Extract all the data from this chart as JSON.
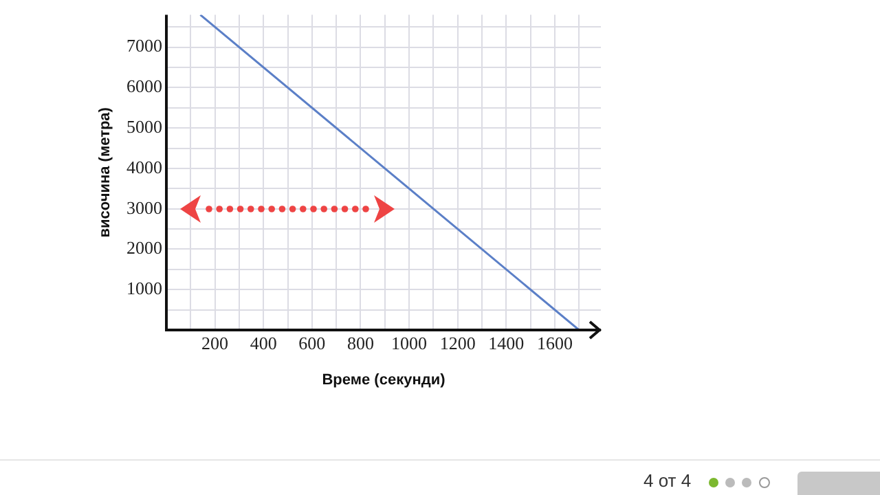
{
  "chart_data": {
    "type": "line",
    "xlabel": "Време (секунди)",
    "ylabel": "височина (метра)",
    "x": [
      140,
      1700
    ],
    "series": [
      {
        "color": "#5b7fc7",
        "values": [
          7800,
          0
        ]
      }
    ],
    "xlim": [
      0,
      1790
    ],
    "ylim": [
      0,
      7800
    ],
    "xticks": [
      {
        "value": 100,
        "label": null
      },
      200,
      {
        "value": 300,
        "label": null
      },
      400,
      {
        "value": 500,
        "label": null
      },
      600,
      {
        "value": 700,
        "label": null
      },
      800,
      {
        "value": 900,
        "label": null
      },
      1000,
      {
        "value": 1100,
        "label": null
      },
      1200,
      {
        "value": 1300,
        "label": null
      },
      1400,
      {
        "value": 1500,
        "label": null
      },
      1600,
      {
        "value": 1700,
        "label": null
      }
    ],
    "yticks": [
      {
        "value": 500,
        "label": null
      },
      1000,
      {
        "value": 1500,
        "label": null
      },
      2000,
      {
        "value": 2500,
        "label": null
      },
      3000,
      {
        "value": 3500,
        "label": null
      },
      4000,
      {
        "value": 4500,
        "label": null
      },
      5000,
      {
        "value": 5500,
        "label": null
      },
      6000,
      {
        "value": 6500,
        "label": null
      },
      7000,
      {
        "value": 7500,
        "label": null
      }
    ],
    "grid": true,
    "marker": "none",
    "line_style": "solid",
    "legend": false,
    "annotations": [
      "4 от 4"
    ]
  }
}
